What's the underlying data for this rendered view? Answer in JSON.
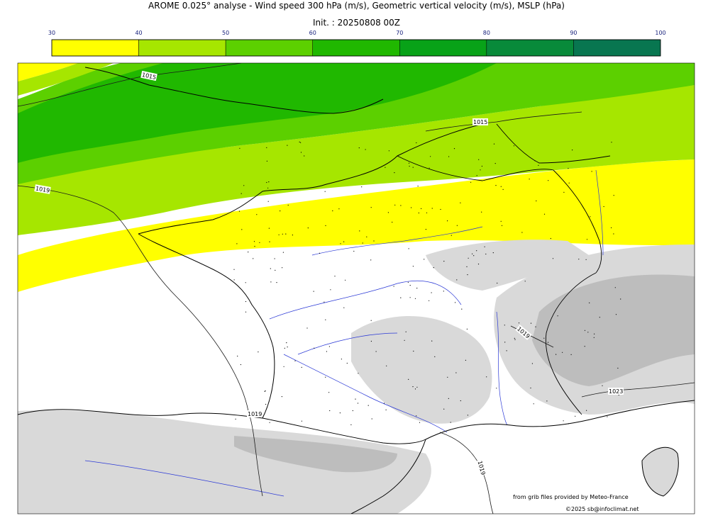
{
  "header": {
    "title": "AROME 0.025° analyse - Wind speed 300 hPa (m/s), Geometric vertical velocity (m/s), MSLP (hPa)",
    "init": "Init. : 20250808 00Z"
  },
  "colorbar": {
    "ticks": [
      "30",
      "40",
      "50",
      "60",
      "70",
      "80",
      "90",
      "100"
    ],
    "colors": [
      "#ffff00",
      "#a6e600",
      "#5cd000",
      "#20b800",
      "#08a218",
      "#088a3a",
      "#087650"
    ]
  },
  "map": {
    "isobar_labels": [
      "1015",
      "1015",
      "1019",
      "1019",
      "1019",
      "1019",
      "1023"
    ],
    "colors": {
      "zone_40_50": "#a6e600",
      "zone_50_60": "#5cd000",
      "zone_60_70": "#20b800",
      "zone_30_40": "#ffff00",
      "terrain_light": "#d9d9d9",
      "terrain_dark": "#bdbdbd",
      "rivers": "#2a38d6",
      "coast": "#000000"
    }
  },
  "credits": {
    "source": "from grib files provided by Meteo-France",
    "copyright": "©2025 sb@infoclimat.net"
  }
}
